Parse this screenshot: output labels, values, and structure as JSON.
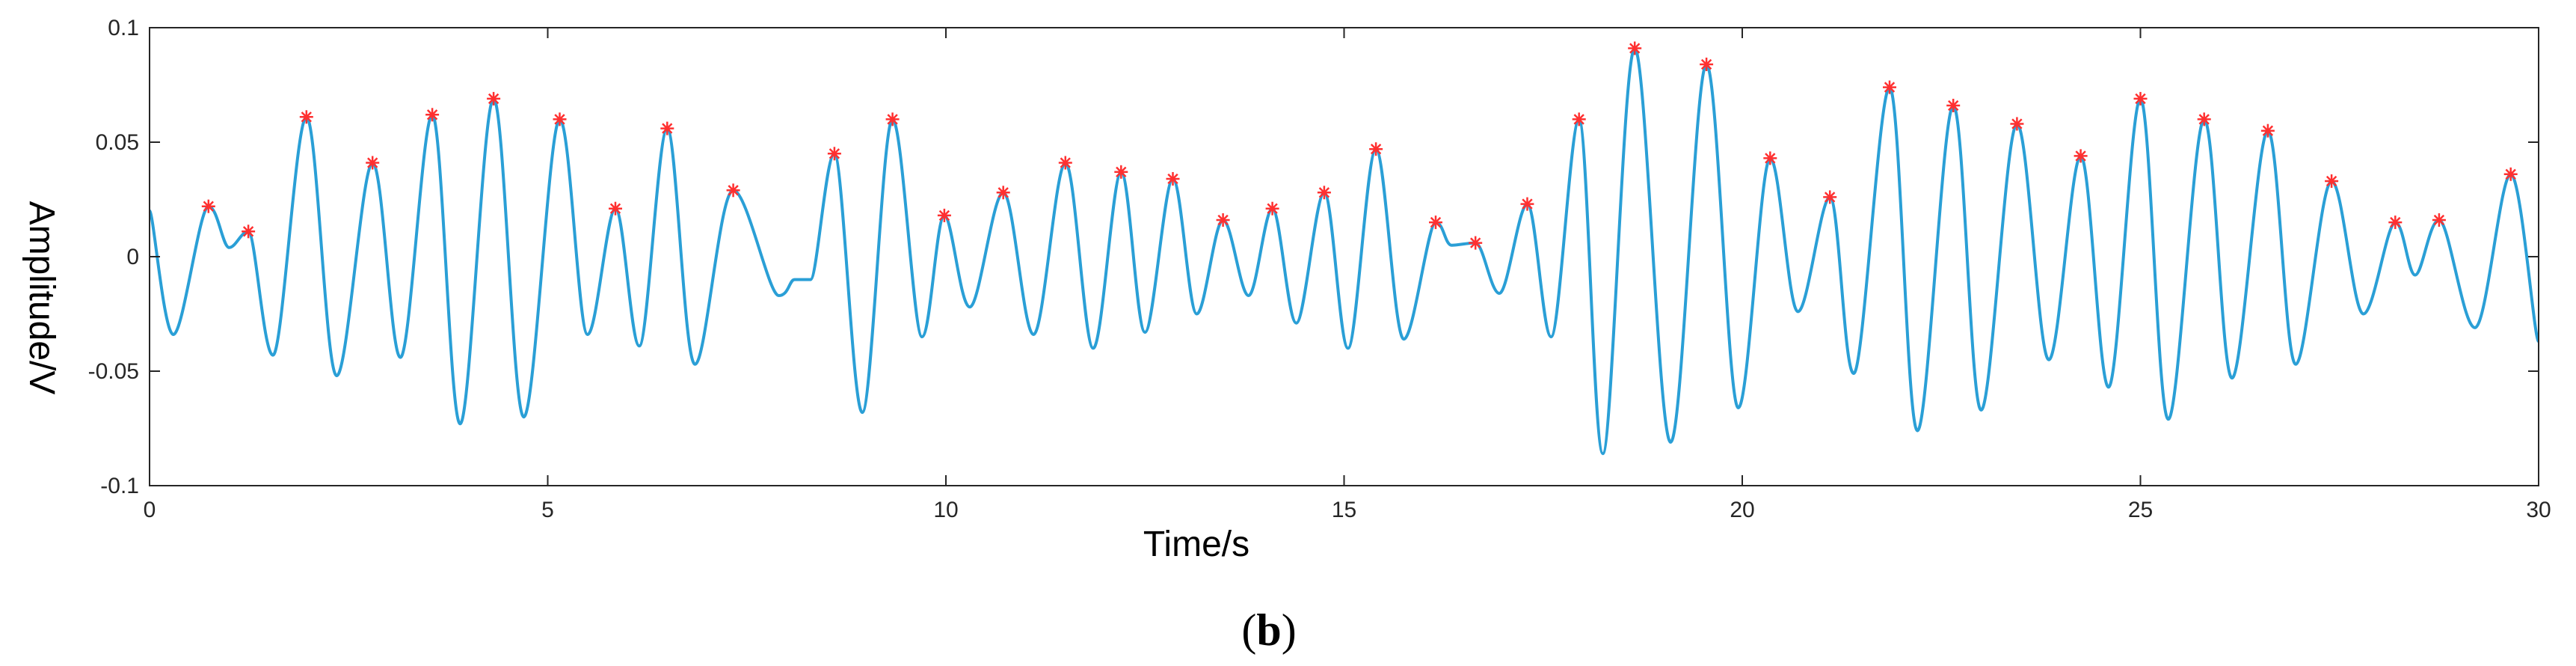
{
  "chart_data": {
    "type": "line",
    "xlabel": "Time/s",
    "ylabel": "Amplitude/V",
    "panel_label_open": "(",
    "panel_label_letter": "b",
    "panel_label_close": ")",
    "xlim": [
      0,
      30
    ],
    "ylim": [
      -0.1,
      0.1
    ],
    "x_ticks": [
      0,
      5,
      10,
      15,
      20,
      25,
      30
    ],
    "x_tick_labels": [
      "0",
      "5",
      "10",
      "15",
      "20",
      "25",
      "30"
    ],
    "y_ticks": [
      -0.1,
      -0.05,
      0,
      0.05,
      0.1
    ],
    "y_tick_labels": [
      "-0.1",
      "-0.05",
      "0",
      "0.05",
      "0.1"
    ],
    "grid": false,
    "box": true,
    "colors": {
      "line": "#2a9fd6",
      "marker": "#ff3030",
      "axis": "#262626"
    },
    "series": [
      {
        "values_x": [
          0.0,
          0.3,
          0.74,
          1.0,
          1.24,
          1.55,
          1.97,
          2.35,
          2.8,
          3.15,
          3.55,
          3.9,
          4.32,
          4.7,
          5.15,
          5.5,
          5.85,
          6.15,
          6.5,
          6.85,
          7.33,
          7.9,
          8.1,
          8.3,
          8.6,
          8.95,
          9.33,
          9.7,
          9.98,
          10.3,
          10.72,
          11.1,
          11.5,
          11.85,
          12.2,
          12.5,
          12.85,
          13.15,
          13.48,
          13.8,
          14.1,
          14.4,
          14.75,
          15.05,
          15.4,
          15.75,
          16.15,
          16.35,
          16.65,
          16.95,
          17.3,
          17.6,
          17.95,
          18.25,
          18.65,
          19.1,
          19.55,
          19.95,
          20.35,
          20.7,
          21.1,
          21.4,
          21.85,
          22.2,
          22.65,
          23.0,
          23.45,
          23.85,
          24.25,
          24.6,
          25.0,
          25.35,
          25.8,
          26.15,
          26.6,
          26.95,
          27.4,
          27.8,
          28.2,
          28.45,
          28.75,
          29.2,
          29.65,
          30.0
        ],
        "values_y": [
          0.02,
          -0.034,
          0.022,
          0.004,
          0.011,
          -0.043,
          0.061,
          -0.052,
          0.041,
          -0.044,
          0.062,
          -0.073,
          0.069,
          -0.07,
          0.06,
          -0.034,
          0.021,
          -0.039,
          0.056,
          -0.047,
          0.029,
          -0.017,
          -0.01,
          -0.01,
          0.045,
          -0.068,
          0.06,
          -0.035,
          0.018,
          -0.022,
          0.028,
          -0.034,
          0.041,
          -0.04,
          0.037,
          -0.033,
          0.034,
          -0.025,
          0.016,
          -0.017,
          0.021,
          -0.029,
          0.028,
          -0.04,
          0.047,
          -0.036,
          0.015,
          0.005,
          0.006,
          -0.016,
          0.023,
          -0.035,
          0.06,
          -0.086,
          0.091,
          -0.081,
          0.084,
          -0.066,
          0.043,
          -0.024,
          0.026,
          -0.051,
          0.074,
          -0.076,
          0.066,
          -0.067,
          0.058,
          -0.045,
          0.044,
          -0.057,
          0.069,
          -0.071,
          0.06,
          -0.053,
          0.055,
          -0.047,
          0.033,
          -0.025,
          0.015,
          -0.008,
          0.016,
          -0.031,
          0.036,
          -0.037
        ]
      }
    ],
    "peaks": {
      "x": [
        0.74,
        1.24,
        1.97,
        2.8,
        3.55,
        4.32,
        5.15,
        5.85,
        6.5,
        7.33,
        8.6,
        9.33,
        9.98,
        10.72,
        11.5,
        12.2,
        12.85,
        13.48,
        14.1,
        14.75,
        15.4,
        16.15,
        16.65,
        17.3,
        17.95,
        18.65,
        19.55,
        20.35,
        21.1,
        21.85,
        22.65,
        23.45,
        24.25,
        25.0,
        25.8,
        26.6,
        27.4,
        28.2,
        28.75,
        29.65
      ],
      "y": [
        0.022,
        0.011,
        0.061,
        0.041,
        0.062,
        0.069,
        0.06,
        0.021,
        0.056,
        0.029,
        0.045,
        0.06,
        0.018,
        0.028,
        0.041,
        0.037,
        0.034,
        0.016,
        0.021,
        0.028,
        0.047,
        0.015,
        0.006,
        0.023,
        0.06,
        0.091,
        0.084,
        0.043,
        0.026,
        0.074,
        0.066,
        0.058,
        0.044,
        0.069,
        0.06,
        0.055,
        0.033,
        0.015,
        0.016,
        0.036
      ]
    }
  }
}
